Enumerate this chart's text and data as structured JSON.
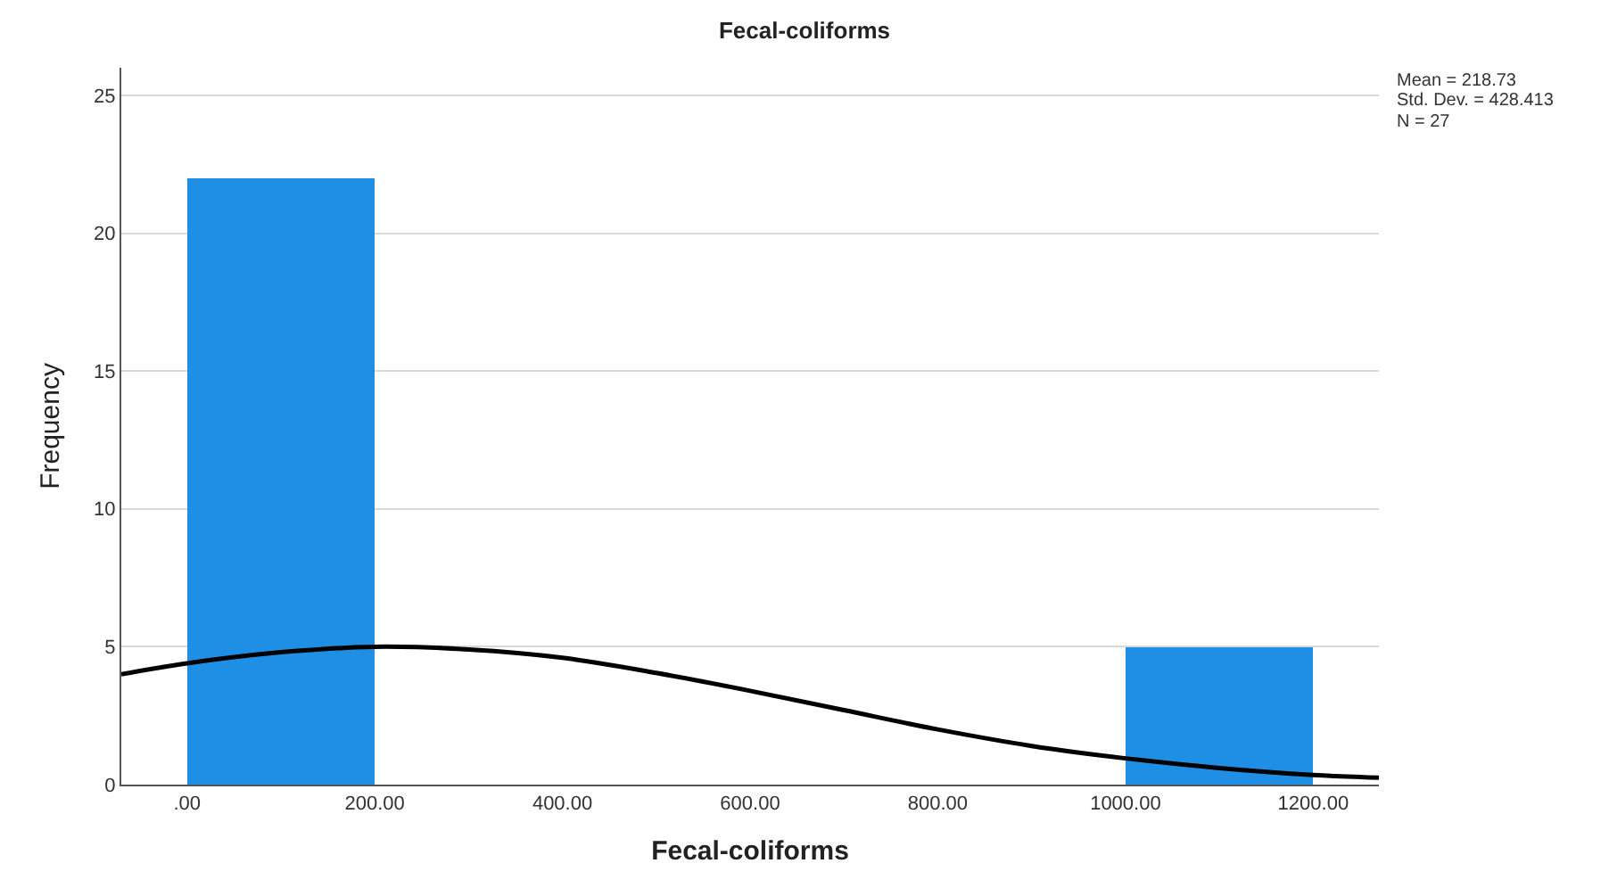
{
  "chart_data": {
    "type": "histogram",
    "title": "Fecal-coliforms",
    "xlabel": "Fecal-coliforms",
    "ylabel": "Frequency",
    "series": [
      {
        "bins": [
          0,
          200,
          400,
          600,
          800,
          1000,
          1200
        ],
        "values": [
          22,
          0,
          0,
          0,
          0,
          5
        ],
        "color": "#1f8fe6"
      },
      {
        "type": "line",
        "color": "#000000",
        "x": [
          -70,
          0,
          100,
          200,
          300,
          400,
          500,
          600,
          700,
          800,
          900,
          1000,
          1100,
          1200,
          1270
        ],
        "values": [
          4.0,
          4.4,
          4.8,
          5.0,
          4.9,
          4.6,
          4.05,
          3.4,
          2.7,
          2.0,
          1.4,
          0.95,
          0.6,
          0.35,
          0.25
        ]
      }
    ],
    "xlim": [
      -70,
      1270
    ],
    "xticks": [
      {
        "value": 0,
        "label": ".00"
      },
      {
        "value": 200,
        "label": "200.00"
      },
      {
        "value": 400,
        "label": "400.00"
      },
      {
        "value": 600,
        "label": "600.00"
      },
      {
        "value": 800,
        "label": "800.00"
      },
      {
        "value": 1000,
        "label": "1000.00"
      },
      {
        "value": 1200,
        "label": "1200.00"
      }
    ],
    "ylim": [
      0,
      26
    ],
    "yticks": [
      0,
      5,
      10,
      15,
      20,
      25
    ],
    "grid": "y",
    "marker": "none",
    "line_style": "solid",
    "annotations": [
      "Mean = 218.73",
      "Std. Dev. = 428.413",
      "N = 27"
    ]
  }
}
